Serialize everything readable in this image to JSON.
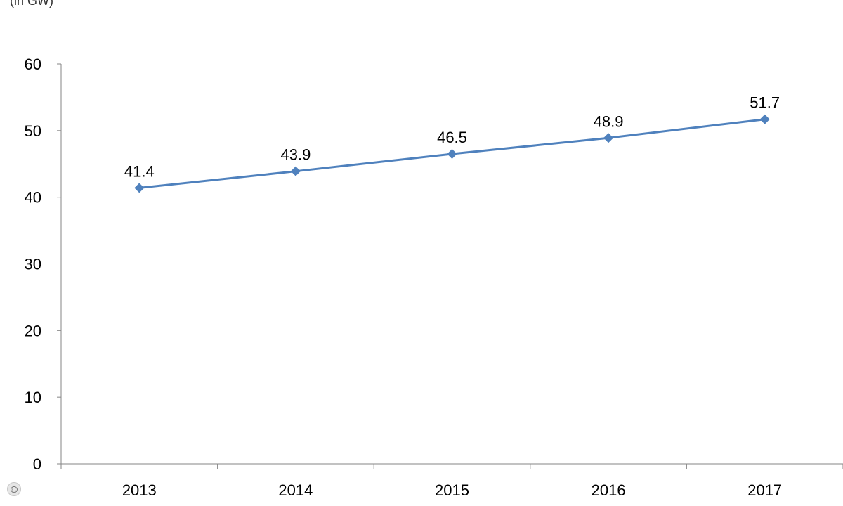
{
  "unit_label": "(in GW)",
  "copyright_symbol": "©",
  "chart_data": {
    "type": "line",
    "title": "",
    "xlabel": "",
    "ylabel": "(in GW)",
    "categories": [
      "2013",
      "2014",
      "2015",
      "2016",
      "2017"
    ],
    "series": [
      {
        "values": [
          41.4,
          43.9,
          46.5,
          48.9,
          51.7
        ],
        "labels": [
          "41.4",
          "43.9",
          "46.5",
          "48.9",
          "51.7"
        ]
      }
    ],
    "ylim": [
      0,
      60
    ],
    "yticks": [
      0,
      10,
      20,
      30,
      40,
      50,
      60
    ],
    "grid": false,
    "legend": "none",
    "colors": {
      "line": "#4F81BD",
      "axis": "#868686",
      "text": "#000000"
    }
  }
}
